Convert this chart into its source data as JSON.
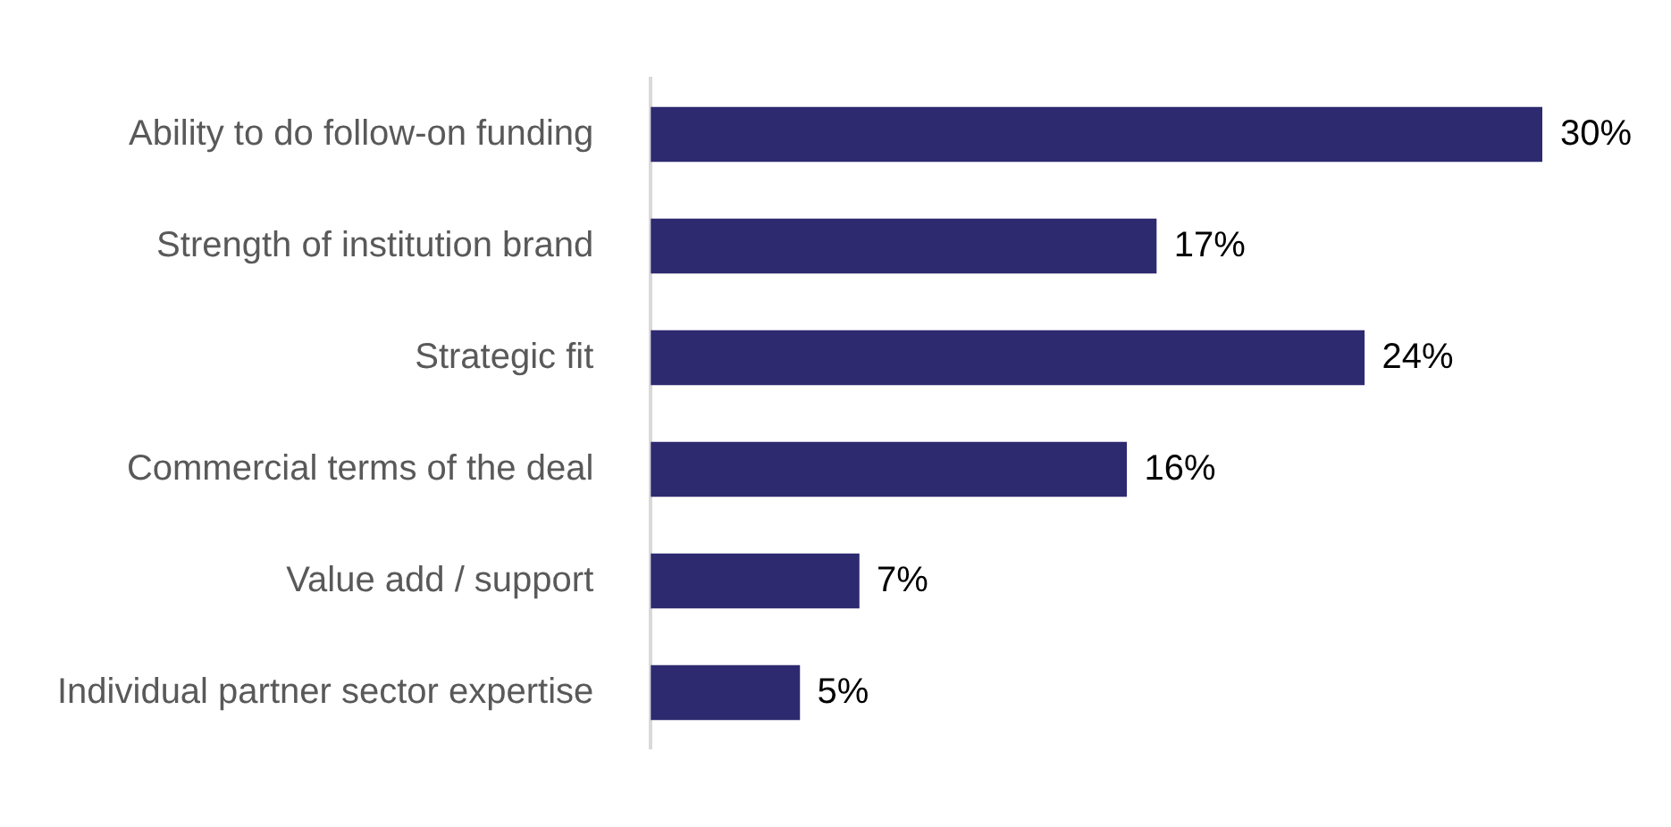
{
  "chart_data": {
    "type": "bar",
    "orientation": "horizontal",
    "categories": [
      "Ability to do follow-on funding",
      "Strength of institution brand",
      "Strategic fit",
      "Commercial terms of the deal",
      "Value add / support",
      "Individual partner sector expertise"
    ],
    "values": [
      30,
      17,
      24,
      16,
      7,
      5
    ],
    "value_labels": [
      "30%",
      "17%",
      "24%",
      "16%",
      "7%",
      "5%"
    ],
    "color": "#2e2a70"
  }
}
